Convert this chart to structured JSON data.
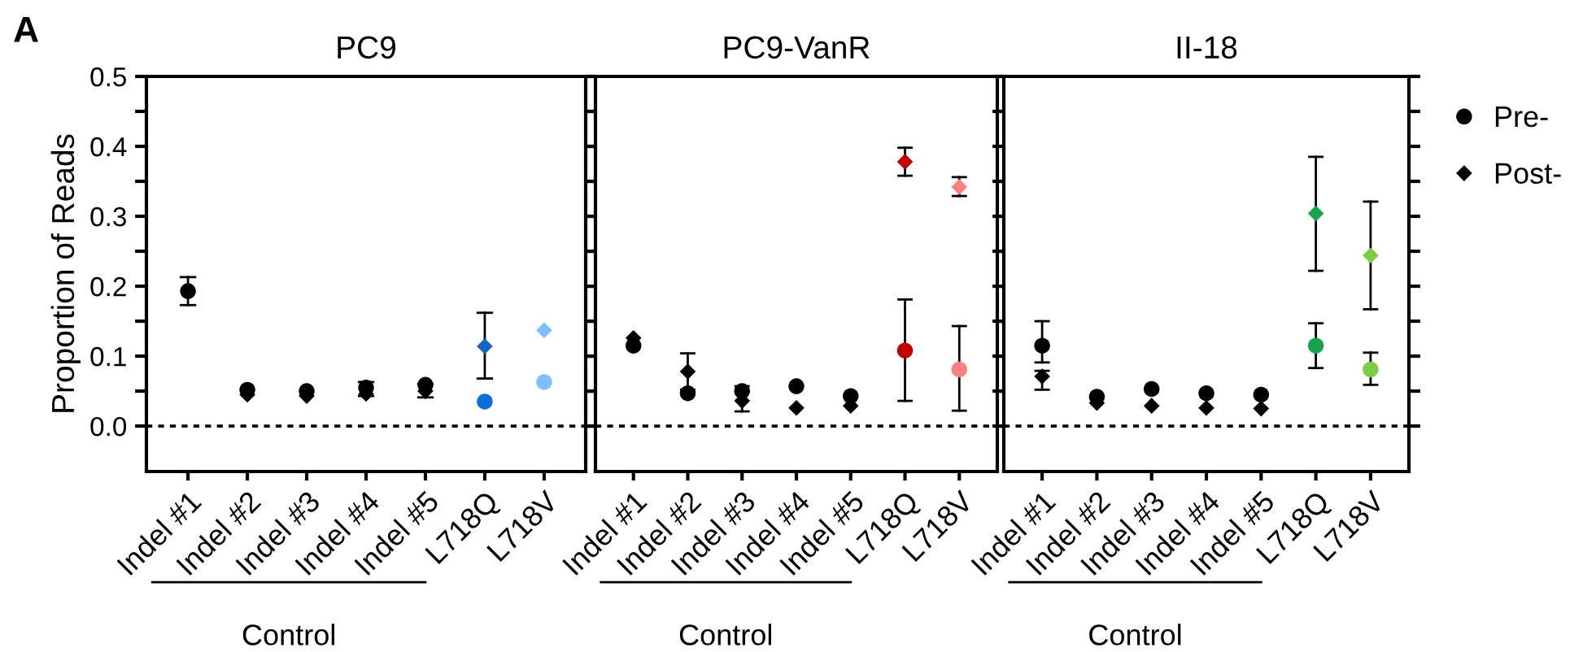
{
  "chart_data": [
    {
      "type": "scatter",
      "title": "PC9",
      "ylabel": "Proportion of Reads",
      "annotations": [
        "A",
        "Control"
      ],
      "categories": [
        "Indel #1",
        "Indel #2",
        "Indel #3",
        "Indel #4",
        "Indel #5",
        "L718Q",
        "L718V"
      ],
      "ylim": [
        -0.065,
        0.5
      ],
      "yticks": [
        {
          "value": 0,
          "label": "0.0"
        },
        {
          "value": 0.05,
          "label": null
        },
        0.1,
        {
          "value": 0.15,
          "label": null
        },
        0.2,
        {
          "value": 0.25,
          "label": null
        },
        0.3,
        {
          "value": 0.35,
          "label": null
        },
        0.4,
        {
          "value": 0.45,
          "label": null
        },
        0.5
      ],
      "grid": false,
      "legend": false,
      "ref_lines": [
        {
          "axis": "y",
          "value": 0,
          "line_style": "dotted",
          "color": "#000000"
        }
      ],
      "series": [
        {
          "marker": "circle",
          "values": [
            0.193,
            0.052,
            0.05,
            0.055,
            0.059,
            0.035,
            0.063
          ],
          "colors": [
            "#000000",
            "#000000",
            "#000000",
            "#000000",
            "#000000",
            "#0a6fd6",
            "#80bfff"
          ],
          "errors": [
            [
              0.173,
              0.213
            ],
            null,
            null,
            [
              0.043,
              0.063
            ],
            null,
            null,
            null
          ]
        },
        {
          "marker": "diamond",
          "values": [
            null,
            0.045,
            0.043,
            0.046,
            0.05,
            0.114,
            0.137
          ],
          "colors": [
            "#000000",
            "#000000",
            "#000000",
            "#000000",
            "#000000",
            "#1565c0",
            "#80bfff"
          ],
          "errors": [
            null,
            null,
            null,
            null,
            [
              0.041,
              0.06
            ],
            [
              0.068,
              0.162
            ],
            null
          ]
        }
      ]
    },
    {
      "type": "scatter",
      "title": "PC9-VanR",
      "annotations": [
        "Control"
      ],
      "categories": [
        "Indel #1",
        "Indel #2",
        "Indel #3",
        "Indel #4",
        "Indel #5",
        "L718Q",
        "L718V"
      ],
      "ylim": [
        -0.065,
        0.5
      ],
      "yticks": [
        {
          "value": 0,
          "label": null
        },
        {
          "value": 0.05,
          "label": null
        },
        0.1,
        {
          "value": 0.15,
          "label": null
        },
        0.2,
        {
          "value": 0.25,
          "label": null
        },
        0.3,
        {
          "value": 0.35,
          "label": null
        },
        0.4,
        {
          "value": 0.45,
          "label": null
        },
        0.5
      ],
      "tick_labels": "x",
      "grid": false,
      "legend": false,
      "ref_lines": [
        {
          "axis": "y",
          "value": 0,
          "line_style": "dotted",
          "color": "#000000"
        }
      ],
      "series": [
        {
          "marker": "circle",
          "values": [
            0.115,
            0.047,
            0.05,
            0.057,
            0.043,
            0.108,
            0.081
          ],
          "colors": [
            "#000000",
            "#000000",
            "#000000",
            "#000000",
            "#000000",
            "#c00000",
            "#ff8080"
          ],
          "errors": [
            null,
            null,
            [
              0.021,
              0.057
            ],
            null,
            null,
            [
              0.036,
              0.181
            ],
            [
              0.022,
              0.143
            ]
          ]
        },
        {
          "marker": "diamond",
          "values": [
            0.126,
            0.078,
            0.036,
            0.026,
            0.029,
            0.378,
            0.342
          ],
          "colors": [
            "#000000",
            "#000000",
            "#000000",
            "#000000",
            "#000000",
            "#c00000",
            "#ff8080"
          ],
          "errors": [
            null,
            [
              0.052,
              0.104
            ],
            null,
            null,
            null,
            [
              0.358,
              0.398
            ],
            [
              0.329,
              0.356
            ]
          ]
        }
      ]
    },
    {
      "type": "scatter",
      "title": "II-18",
      "annotations": [
        "Control"
      ],
      "categories": [
        "Indel #1",
        "Indel #2",
        "Indel #3",
        "Indel #4",
        "Indel #5",
        "L718Q",
        "L718V"
      ],
      "ylim": [
        -0.065,
        0.5
      ],
      "yticks": [
        {
          "value": 0,
          "label": null
        },
        {
          "value": 0.05,
          "label": null
        },
        0.1,
        {
          "value": 0.15,
          "label": null
        },
        0.2,
        {
          "value": 0.25,
          "label": null
        },
        0.3,
        {
          "value": 0.35,
          "label": null
        },
        0.4,
        {
          "value": 0.45,
          "label": null
        },
        0.5
      ],
      "tick_labels": "x",
      "grid": false,
      "legend": "right",
      "ref_lines": [
        {
          "axis": "y",
          "value": 0,
          "line_style": "dotted",
          "color": "#000000"
        }
      ],
      "series": [
        {
          "name": "Pre-",
          "marker": "circle",
          "values": [
            0.115,
            0.042,
            0.053,
            0.047,
            0.045,
            0.115,
            0.081
          ],
          "colors": [
            "#000000",
            "#000000",
            "#000000",
            "#000000",
            "#000000",
            "#1aa34a",
            "#7ccc44"
          ],
          "errors": [
            [
              0.091,
              0.15
            ],
            null,
            null,
            null,
            null,
            [
              0.083,
              0.147
            ],
            [
              0.059,
              0.105
            ]
          ]
        },
        {
          "name": "Post-",
          "marker": "diamond",
          "values": [
            0.071,
            0.033,
            0.029,
            0.026,
            0.025,
            0.304,
            0.244
          ],
          "colors": [
            "#000000",
            "#000000",
            "#000000",
            "#000000",
            "#000000",
            "#1aa34a",
            "#7ccc44"
          ],
          "errors": [
            [
              0.052,
              0.079
            ],
            null,
            null,
            null,
            null,
            [
              0.222,
              0.385
            ],
            [
              0.167,
              0.321
            ]
          ]
        }
      ]
    }
  ]
}
